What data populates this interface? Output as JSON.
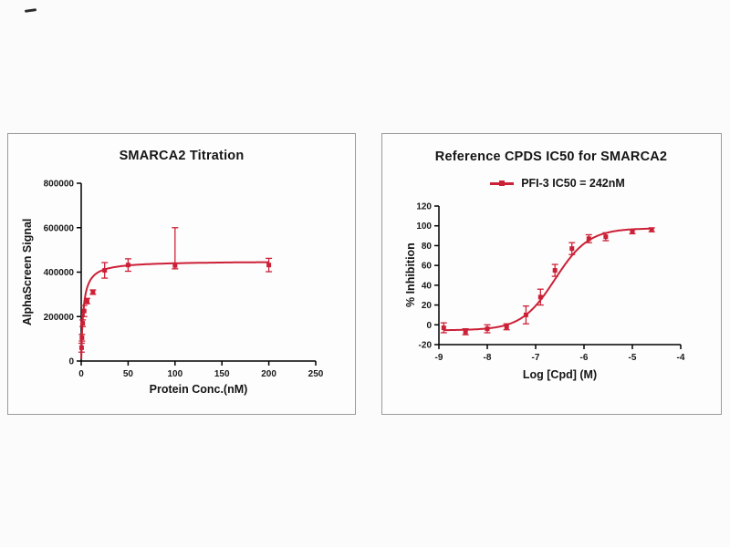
{
  "accent_color": "#cc2037",
  "chart_data": [
    {
      "type": "scatter",
      "title": "SMARCA2 Titration",
      "xlabel": "Protein Conc.(nM)",
      "ylabel": "AlphaScreen Signal",
      "xlim": [
        0,
        250
      ],
      "ylim": [
        0,
        800000
      ],
      "xticks": [
        0,
        50,
        100,
        150,
        200,
        250
      ],
      "yticks": [
        0,
        200000,
        400000,
        600000,
        800000
      ],
      "grid": false,
      "legend_position": "none",
      "color": "#cc2037",
      "marker": "square",
      "series": [
        {
          "name": "SMARCA2 titration",
          "points": [
            {
              "x": 0.39,
              "y": 60000,
              "err": 20000
            },
            {
              "x": 0.78,
              "y": 105000,
              "err": 15000
            },
            {
              "x": 1.56,
              "y": 170000,
              "err": 15000
            },
            {
              "x": 3.13,
              "y": 225000,
              "err": 25000
            },
            {
              "x": 6.25,
              "y": 270000,
              "err": 12000
            },
            {
              "x": 12.5,
              "y": 310000,
              "err": 10000
            },
            {
              "x": 25,
              "y": 408000,
              "err": 35000
            },
            {
              "x": 50,
              "y": 432000,
              "err": 28000
            },
            {
              "x": 100,
              "y": 430000,
              "eu": 170000,
              "ed": 15000
            },
            {
              "x": 200,
              "y": 432000,
              "err": 30000
            }
          ]
        }
      ],
      "curve": {
        "type": "hyperbola",
        "bmax": 450000,
        "kd": 2.3,
        "xmin": 0.05,
        "xmax": 200
      }
    },
    {
      "type": "line",
      "title": "Reference CPDS IC50 for SMARCA2",
      "legend": "PFI-3 IC50 = 242nM",
      "xlabel": "Log [Cpd] (M)",
      "ylabel": "% Inhibition",
      "xlim": [
        -9,
        -4
      ],
      "ylim": [
        -20,
        120
      ],
      "xticks": [
        -9,
        -8,
        -7,
        -6,
        -5,
        -4
      ],
      "yticks": [
        -20,
        0,
        20,
        40,
        60,
        80,
        100,
        120
      ],
      "grid": false,
      "legend_position": "top-center",
      "color": "#cc2037",
      "marker": "square",
      "ic50_nM": 242,
      "series": [
        {
          "name": "PFI-3",
          "points": [
            {
              "x": -8.9,
              "y": -3,
              "err": 5
            },
            {
              "x": -8.45,
              "y": -7,
              "err": 3
            },
            {
              "x": -8.0,
              "y": -4,
              "err": 4
            },
            {
              "x": -7.6,
              "y": -2,
              "err": 3
            },
            {
              "x": -7.2,
              "y": 10,
              "err": 9
            },
            {
              "x": -6.9,
              "y": 28,
              "err": 8
            },
            {
              "x": -6.6,
              "y": 55,
              "err": 6
            },
            {
              "x": -6.25,
              "y": 77,
              "err": 6
            },
            {
              "x": -5.9,
              "y": 87,
              "err": 4
            },
            {
              "x": -5.55,
              "y": 89,
              "err": 4
            },
            {
              "x": -5.0,
              "y": 94,
              "err": 2
            },
            {
              "x": -4.6,
              "y": 96,
              "err": 2
            }
          ]
        }
      ],
      "curve": {
        "type": "sigmoid",
        "bottom": -5.5,
        "top": 97.5,
        "logIC50": -6.6,
        "hill": 1.25,
        "xmin": -8.9,
        "xmax": -4.6
      }
    }
  ]
}
